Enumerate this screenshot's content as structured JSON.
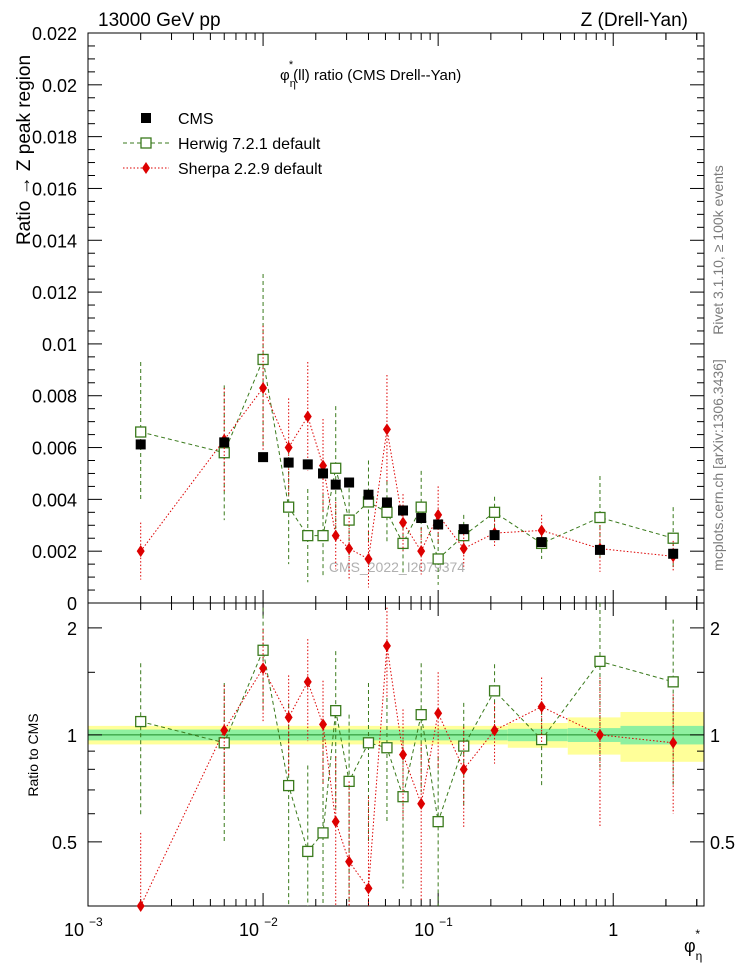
{
  "header": {
    "left": "13000 GeV pp",
    "right": "Z (Drell-Yan)"
  },
  "side": {
    "rivet": "Rivet 3.1.10, ≥ 100k events",
    "mcplots": "mcplots.cern.ch [arXiv:1306.3436]"
  },
  "chart_data": [
    {
      "type": "scatter",
      "panel": "main",
      "title": "φ*η(ll) ratio (CMS Drell--Yan)",
      "title_parts": {
        "sym": "φ",
        "sup": "*",
        "sub": "η",
        "rest": "(ll) ratio (CMS Drell--Yan)"
      },
      "ylabel": "Ratio → Z peak region",
      "xlabel": "φ*η",
      "x_scale": "log",
      "xlim": [
        0.001,
        3.3
      ],
      "ylim": [
        0,
        0.022
      ],
      "yticks": [
        "0",
        "0.002",
        "0.004",
        "0.006",
        "0.008",
        "0.01",
        "0.012",
        "0.014",
        "0.016",
        "0.018",
        "0.02",
        "0.022"
      ],
      "watermark": "CMS_2022_I2079374",
      "legend_position": "top-left",
      "x": [
        0.002,
        0.006,
        0.01,
        0.014,
        0.018,
        0.022,
        0.026,
        0.031,
        0.04,
        0.051,
        0.063,
        0.08,
        0.1,
        0.14,
        0.21,
        0.39,
        0.84,
        2.2
      ],
      "series": [
        {
          "name": "CMS",
          "color": "#000000",
          "marker": "filled-square",
          "y": [
            0.00612,
            0.0062,
            0.00563,
            0.00542,
            0.00535,
            0.005,
            0.00457,
            0.00465,
            0.00418,
            0.00388,
            0.00357,
            0.00328,
            0.00303,
            0.00285,
            0.00262,
            0.00235,
            0.00205,
            0.0019
          ],
          "err": [
            0.0001,
            0.0001,
            0.0001,
            0.0001,
            0.0001,
            0.0001,
            0.0001,
            0.0001,
            0.0001,
            0.0001,
            0.0001,
            0.0001,
            0.0001,
            0.0001,
            0.0001,
            0.0001,
            0.0001,
            0.0001
          ]
        },
        {
          "name": "Herwig 7.2.1 default",
          "color": "#3a7a1c",
          "marker": "open-square",
          "line": "dashed",
          "y": [
            0.0066,
            0.0058,
            0.0094,
            0.0037,
            0.0026,
            0.0026,
            0.0052,
            0.0032,
            0.0039,
            0.0035,
            0.0023,
            0.0037,
            0.0017,
            0.0026,
            0.0035,
            0.0023,
            0.0033,
            0.0025
          ],
          "err": [
            0.0027,
            0.0026,
            0.0033,
            0.0022,
            0.0018,
            0.0016,
            0.0024,
            0.0015,
            0.0016,
            0.0012,
            0.0012,
            0.0014,
            0.001,
            0.0008,
            0.0006,
            0.0006,
            0.0016,
            0.0012
          ]
        },
        {
          "name": "Sherpa 2.2.9 default",
          "color": "#dd0000",
          "marker": "filled-diamond",
          "line": "dotted",
          "y": [
            0.002,
            0.0063,
            0.0083,
            0.006,
            0.0072,
            0.0053,
            0.0026,
            0.0021,
            0.0017,
            0.0067,
            0.0031,
            0.002,
            0.0034,
            0.0021,
            0.0027,
            0.0028,
            0.0021,
            0.0018
          ],
          "err": [
            0.0011,
            0.002,
            0.0024,
            0.0019,
            0.0021,
            0.0018,
            0.0013,
            0.0012,
            0.0011,
            0.0021,
            0.0011,
            0.0009,
            0.0011,
            0.0007,
            0.0005,
            0.0006,
            0.0009,
            0.0006
          ]
        }
      ]
    },
    {
      "type": "scatter",
      "panel": "ratio",
      "ylabel": "Ratio to CMS",
      "x_scale": "log",
      "xlim": [
        0.001,
        3.3
      ],
      "ylim": [
        0.33,
        2.35
      ],
      "yticks": [
        "0.5",
        "1",
        "2"
      ],
      "xticks": [
        "10^-3",
        "10^-2",
        "10^-1",
        "1"
      ],
      "x": [
        0.002,
        0.006,
        0.01,
        0.014,
        0.018,
        0.022,
        0.026,
        0.031,
        0.04,
        0.051,
        0.063,
        0.08,
        0.1,
        0.14,
        0.21,
        0.39,
        0.84,
        2.2
      ],
      "bands": {
        "edges": [
          0.001,
          0.25,
          0.55,
          1.1,
          3.3
        ],
        "inner": [
          0.035,
          0.04,
          0.045,
          0.06
        ],
        "outer": [
          0.06,
          0.08,
          0.12,
          0.16
        ]
      },
      "series": [
        {
          "name": "Herwig 7.2.1 default",
          "color": "#3a7a1c",
          "y": [
            1.09,
            0.95,
            1.73,
            0.72,
            0.47,
            0.53,
            1.17,
            0.74,
            0.95,
            0.92,
            0.67,
            1.14,
            0.57,
            0.93,
            1.33,
            0.97,
            1.61,
            1.41
          ],
          "err": [
            0.5,
            0.45,
            0.55,
            0.5,
            0.35,
            0.45,
            0.55,
            0.4,
            0.45,
            0.35,
            0.3,
            0.45,
            0.3,
            0.3,
            0.25,
            0.25,
            0.8,
            0.7
          ]
        },
        {
          "name": "Sherpa 2.2.9 default",
          "color": "#dd0000",
          "y": [
            0.33,
            1.03,
            1.54,
            1.12,
            1.41,
            1.07,
            0.57,
            0.44,
            0.37,
            1.78,
            0.88,
            0.64,
            1.15,
            0.8,
            1.03,
            1.2,
            1.0,
            0.95
          ],
          "err": [
            0.2,
            0.35,
            0.45,
            0.35,
            0.45,
            0.35,
            0.3,
            0.3,
            0.3,
            0.5,
            0.3,
            0.3,
            0.35,
            0.25,
            0.2,
            0.25,
            0.45,
            0.35
          ]
        }
      ]
    }
  ]
}
